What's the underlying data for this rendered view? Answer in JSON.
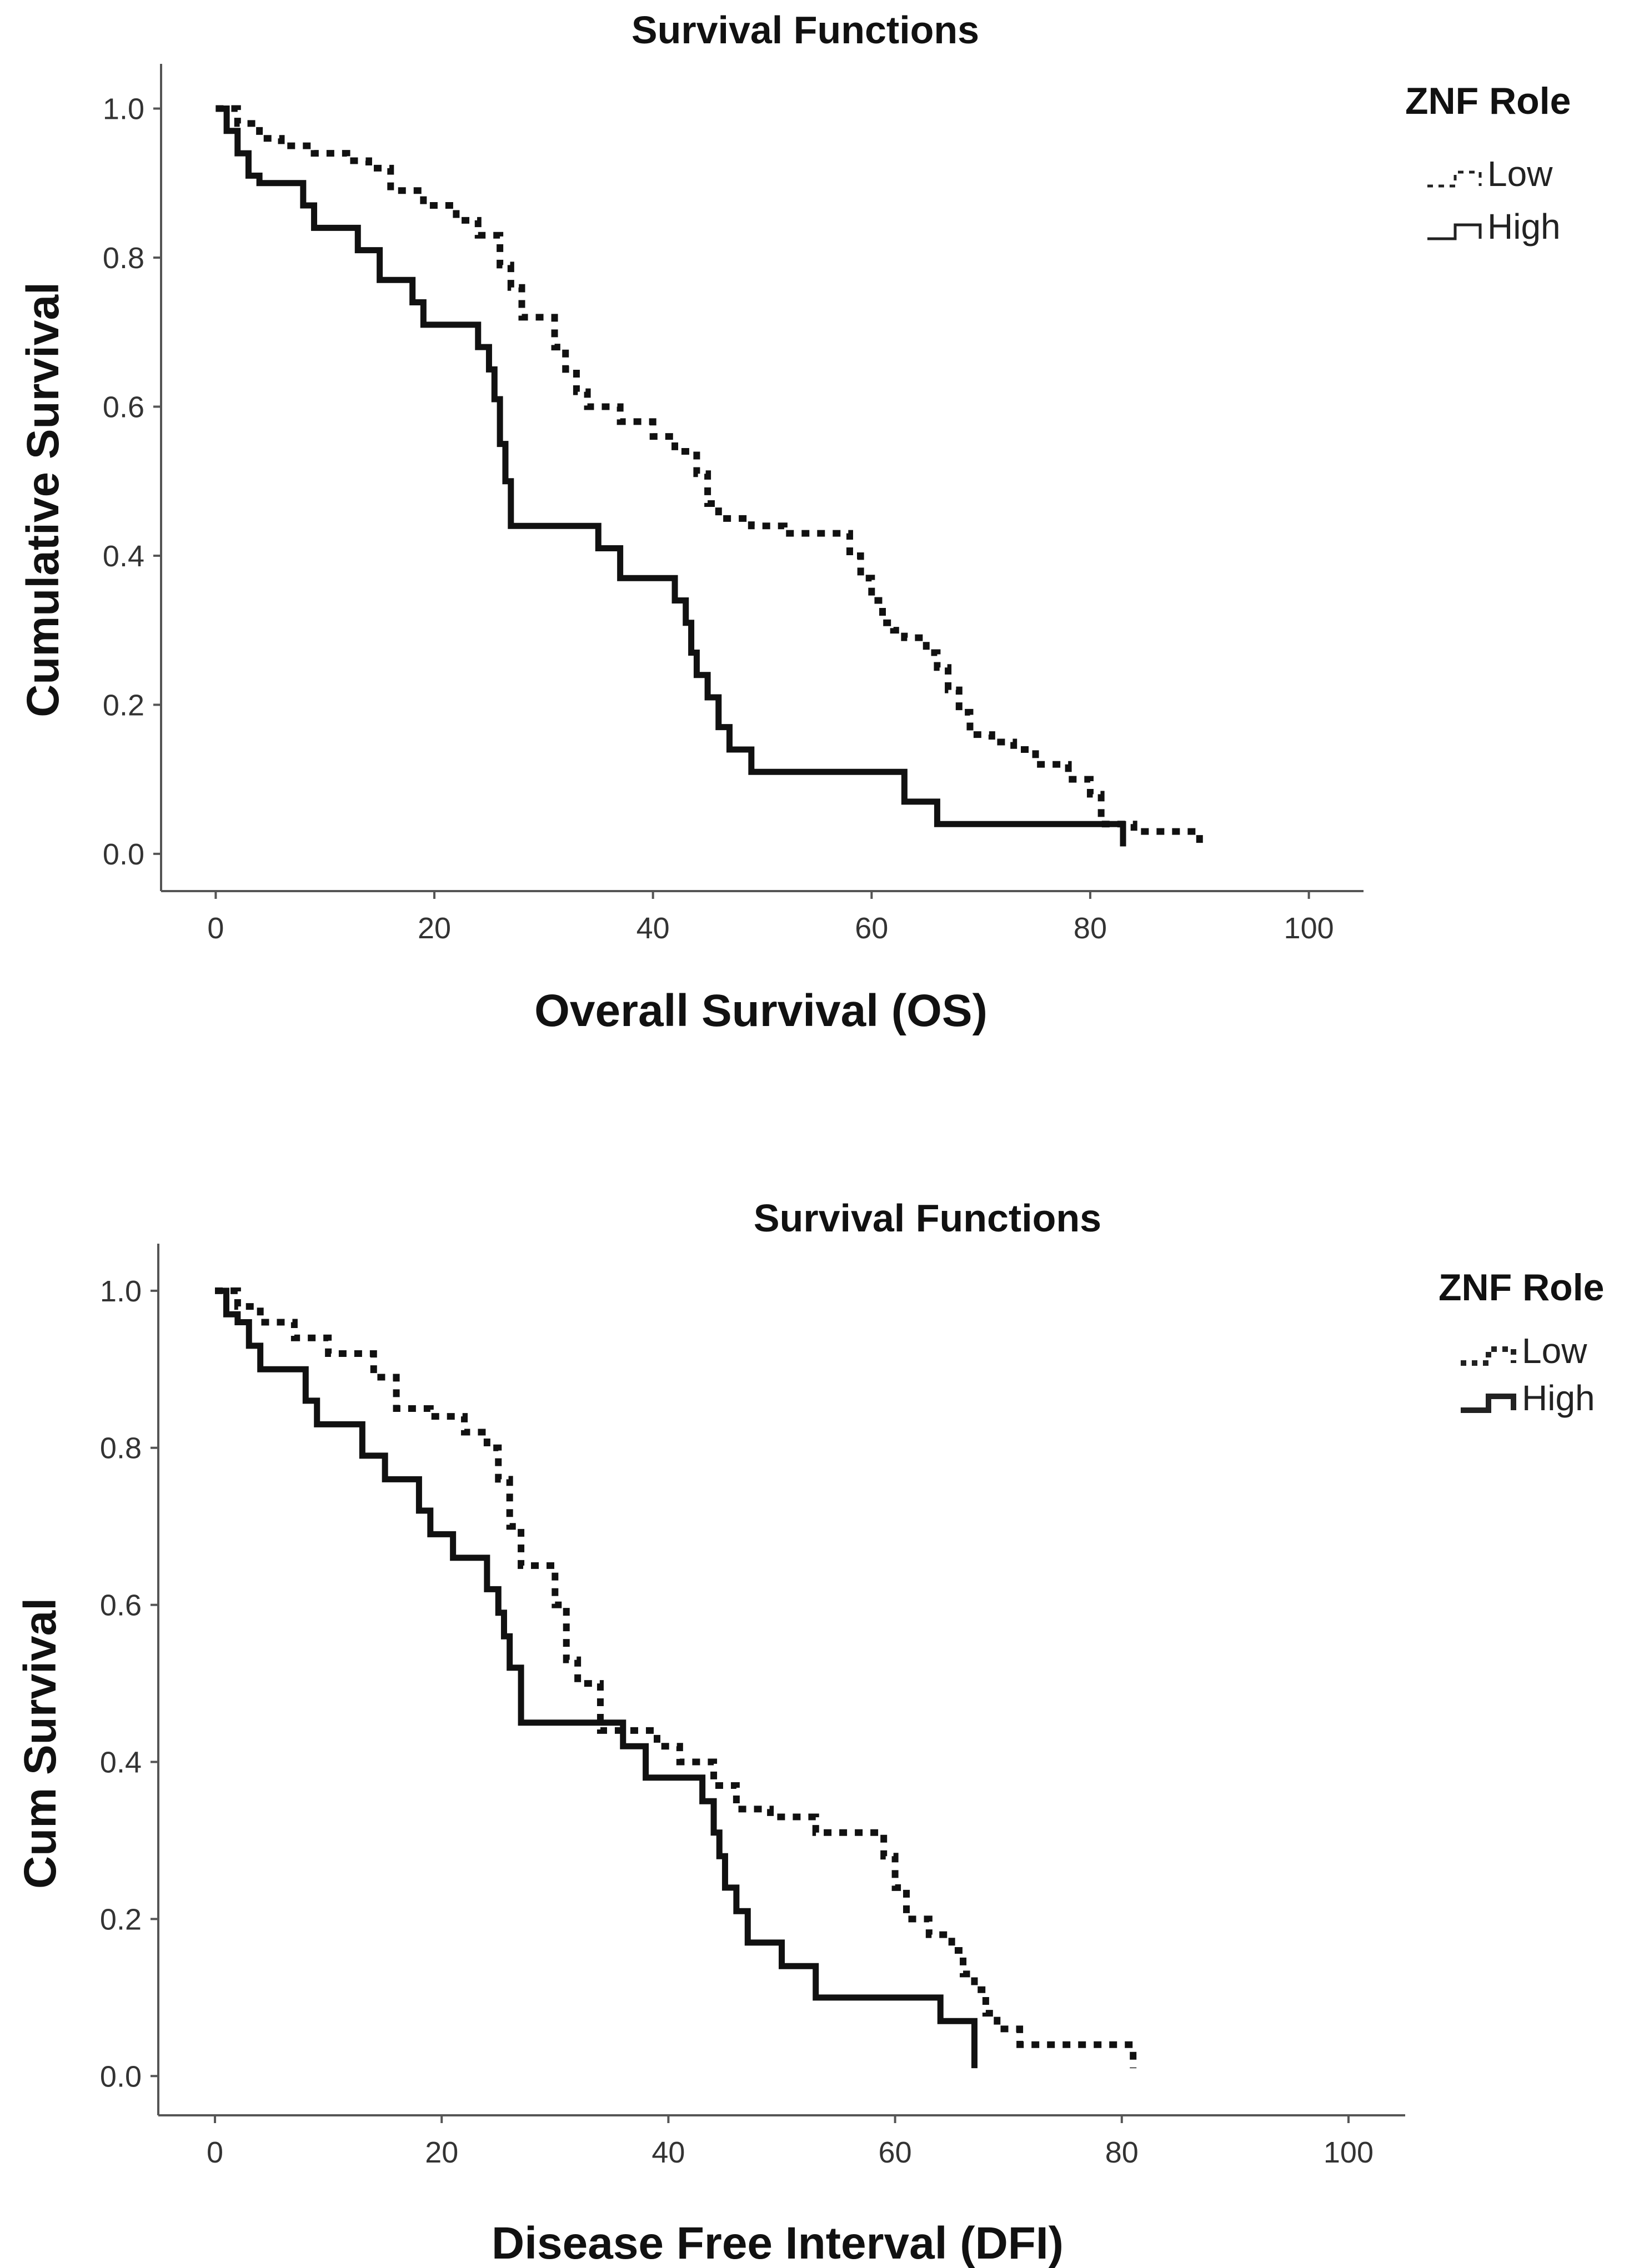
{
  "chart_data": [
    {
      "type": "line",
      "title": "Survival Functions",
      "xlabel": "Overall Survival (OS)",
      "ylabel": "Cumulative Survival",
      "xlim": [
        -5,
        105
      ],
      "ylim": [
        -0.05,
        1.06
      ],
      "xticks": [
        0,
        20,
        40,
        60,
        80,
        100
      ],
      "yticks": [
        0.0,
        0.2,
        0.4,
        0.6,
        0.8,
        1.0
      ],
      "xtick_labels": [
        "0",
        "20",
        "40",
        "60",
        "80",
        "100"
      ],
      "ytick_labels": [
        "0.0",
        "0.2",
        "0.4",
        "0.6",
        "0.8",
        "1.0"
      ],
      "legend_title": "ZNF Role",
      "legend_position": "top-right",
      "series": [
        {
          "name": "Low",
          "style": "dotted",
          "x": [
            0,
            2,
            4,
            6,
            9,
            12,
            14,
            16,
            19,
            22,
            24,
            26,
            27,
            28,
            30,
            31,
            32,
            33,
            34,
            37,
            40,
            42,
            44,
            45,
            46,
            49,
            52,
            58,
            59,
            60,
            61,
            62,
            63,
            65,
            66,
            67,
            68,
            69,
            71,
            73,
            75,
            78,
            80,
            81,
            84,
            90,
            90
          ],
          "y": [
            1.0,
            0.98,
            0.96,
            0.95,
            0.94,
            0.93,
            0.92,
            0.89,
            0.87,
            0.85,
            0.83,
            0.79,
            0.76,
            0.72,
            0.72,
            0.68,
            0.65,
            0.62,
            0.6,
            0.58,
            0.56,
            0.54,
            0.51,
            0.47,
            0.45,
            0.44,
            0.43,
            0.4,
            0.37,
            0.34,
            0.31,
            0.3,
            0.29,
            0.27,
            0.25,
            0.22,
            0.19,
            0.16,
            0.15,
            0.14,
            0.12,
            0.1,
            0.08,
            0.04,
            0.03,
            0.03,
            0.01
          ]
        },
        {
          "name": "High",
          "style": "solid",
          "x": [
            0,
            1,
            2,
            3,
            4,
            8,
            9,
            13,
            15,
            18,
            19,
            24,
            25,
            25.5,
            26,
            26.5,
            27,
            35,
            37,
            42,
            43,
            43.5,
            44,
            45,
            46,
            47,
            49,
            63,
            66,
            83,
            83
          ],
          "y": [
            1.0,
            0.97,
            0.94,
            0.91,
            0.9,
            0.87,
            0.84,
            0.81,
            0.77,
            0.74,
            0.71,
            0.68,
            0.65,
            0.61,
            0.55,
            0.5,
            0.44,
            0.41,
            0.37,
            0.34,
            0.31,
            0.27,
            0.24,
            0.21,
            0.17,
            0.14,
            0.11,
            0.07,
            0.04,
            0.04,
            0.01
          ]
        }
      ]
    },
    {
      "type": "line",
      "title": "Survival Functions",
      "xlabel": "Disease Free Interval (DFI)",
      "ylabel": "Cum Survival",
      "xlim": [
        -5,
        105
      ],
      "ylim": [
        -0.05,
        1.06
      ],
      "xticks": [
        0,
        20,
        40,
        60,
        80,
        100
      ],
      "yticks": [
        0.0,
        0.2,
        0.4,
        0.6,
        0.8,
        1.0
      ],
      "xtick_labels": [
        "0",
        "20",
        "40",
        "60",
        "80",
        "100"
      ],
      "ytick_labels": [
        "0.0",
        "0.2",
        "0.4",
        "0.6",
        "0.8",
        "1.0"
      ],
      "legend_title": "ZNF Role",
      "legend_position": "top-right",
      "series": [
        {
          "name": "Low",
          "style": "dotted",
          "x": [
            0,
            2,
            4,
            7,
            10,
            14,
            16,
            19,
            22,
            24,
            25,
            26,
            27,
            30,
            31,
            32,
            34,
            36,
            39,
            41,
            44,
            46,
            49,
            53,
            59,
            60,
            61,
            63,
            65,
            66,
            67,
            68,
            69,
            71,
            80,
            81
          ],
          "y": [
            1.0,
            0.98,
            0.96,
            0.94,
            0.92,
            0.89,
            0.85,
            0.84,
            0.82,
            0.8,
            0.76,
            0.7,
            0.65,
            0.6,
            0.53,
            0.5,
            0.44,
            0.44,
            0.42,
            0.4,
            0.37,
            0.34,
            0.33,
            0.31,
            0.28,
            0.24,
            0.2,
            0.18,
            0.16,
            0.13,
            0.11,
            0.08,
            0.06,
            0.04,
            0.04,
            0.01
          ]
        },
        {
          "name": "High",
          "style": "solid",
          "x": [
            0,
            1,
            2,
            3,
            4,
            8,
            9,
            13,
            15,
            18,
            19,
            21,
            24,
            25,
            25.5,
            26,
            27,
            34,
            36,
            38,
            43,
            44,
            44.5,
            45,
            46,
            47,
            50,
            53,
            64,
            67,
            67
          ],
          "y": [
            1.0,
            0.97,
            0.96,
            0.93,
            0.9,
            0.86,
            0.83,
            0.79,
            0.76,
            0.72,
            0.69,
            0.66,
            0.62,
            0.59,
            0.56,
            0.52,
            0.45,
            0.45,
            0.42,
            0.38,
            0.35,
            0.31,
            0.28,
            0.24,
            0.21,
            0.17,
            0.14,
            0.1,
            0.07,
            0.04,
            0.01
          ]
        }
      ]
    }
  ]
}
